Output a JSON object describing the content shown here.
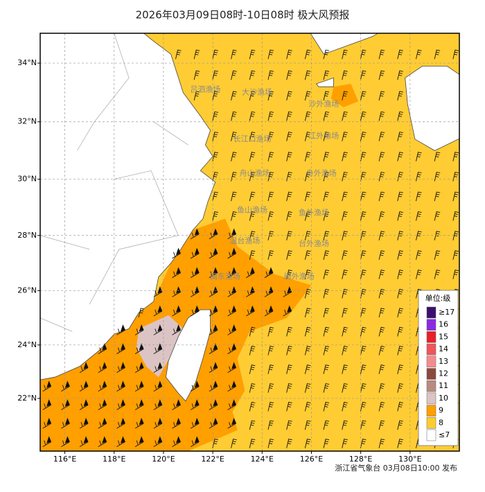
{
  "map": {
    "title": "2026年03月09日08时-10日08时 极大风预报",
    "xlim": [
      115,
      132
    ],
    "ylim": [
      20,
      35
    ],
    "xticks": [
      {
        "value": 116,
        "label": "116°E"
      },
      {
        "value": 118,
        "label": "118°E"
      },
      {
        "value": 120,
        "label": "120°E"
      },
      {
        "value": 122,
        "label": "122°E"
      },
      {
        "value": 124,
        "label": "124°E"
      },
      {
        "value": 126,
        "label": "126°E"
      },
      {
        "value": 128,
        "label": "128°E"
      },
      {
        "value": 130,
        "label": "130°E"
      }
    ],
    "yticks": [
      {
        "value": 22,
        "label": "22°N"
      },
      {
        "value": 24,
        "label": "24°N"
      },
      {
        "value": 26,
        "label": "26°N"
      },
      {
        "value": 28,
        "label": "28°N"
      },
      {
        "value": 30,
        "label": "30°N"
      },
      {
        "value": 32,
        "label": "32°N"
      },
      {
        "value": 34,
        "label": "34°N"
      }
    ],
    "grid": true,
    "fishing_grounds": [
      "吕泗渔场",
      "大沙渔场",
      "沙外渔场",
      "长江口渔场",
      "江外渔场",
      "舟山渔场",
      "舟外渔场",
      "鱼山渔场",
      "鱼外渔场",
      "温台渔场",
      "台外渔场",
      "闽东渔场",
      "闽外渔场"
    ],
    "legend": {
      "title": "单位:级",
      "labels": [
        "≥17",
        "16",
        "15",
        "14",
        "13",
        "12",
        "11",
        "10",
        "9",
        "8",
        "≤7"
      ],
      "colors": [
        "#3b0f6e",
        "#8a2be2",
        "#e8202a",
        "#f0555a",
        "#f58c8c",
        "#8c4a3c",
        "#b98a80",
        "#dcc4c4",
        "#ff9f00",
        "#ffcc33",
        "#ffffff"
      ]
    },
    "footer": "浙江省气象台 03月08日10:00 发布"
  }
}
